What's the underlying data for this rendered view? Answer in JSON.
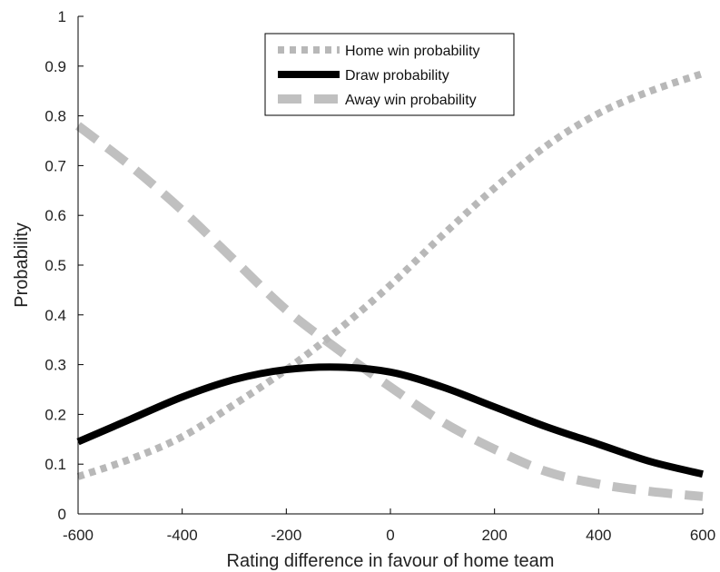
{
  "chart_data": {
    "type": "line",
    "xlabel": "Rating difference in favour of home team",
    "ylabel": "Probability",
    "xlim": [
      -600,
      600
    ],
    "ylim": [
      0,
      1
    ],
    "xticks": [
      "-600",
      "-400",
      "-200",
      "0",
      "200",
      "400",
      "600"
    ],
    "yticks": [
      "0",
      "0.1",
      "0.2",
      "0.3",
      "0.4",
      "0.5",
      "0.6",
      "0.7",
      "0.8",
      "0.9",
      "1"
    ],
    "grid": false,
    "legend_position": "top-center",
    "x": [
      -600,
      -500,
      -400,
      -300,
      -200,
      -100,
      0,
      100,
      200,
      300,
      400,
      500,
      600
    ],
    "series": [
      {
        "name": "Home win probability",
        "style": "dotted",
        "color": "#b8b8b8",
        "values": [
          0.075,
          0.11,
          0.155,
          0.22,
          0.29,
          0.37,
          0.46,
          0.56,
          0.655,
          0.74,
          0.805,
          0.85,
          0.885
        ]
      },
      {
        "name": "Draw probability",
        "style": "solid",
        "color": "#000000",
        "values": [
          0.145,
          0.19,
          0.235,
          0.27,
          0.29,
          0.295,
          0.285,
          0.255,
          0.215,
          0.175,
          0.14,
          0.105,
          0.08
        ]
      },
      {
        "name": "Away win probability",
        "style": "dashed",
        "color": "#c0c0c0",
        "values": [
          0.78,
          0.7,
          0.61,
          0.51,
          0.41,
          0.33,
          0.255,
          0.185,
          0.13,
          0.085,
          0.06,
          0.045,
          0.035
        ]
      }
    ]
  }
}
